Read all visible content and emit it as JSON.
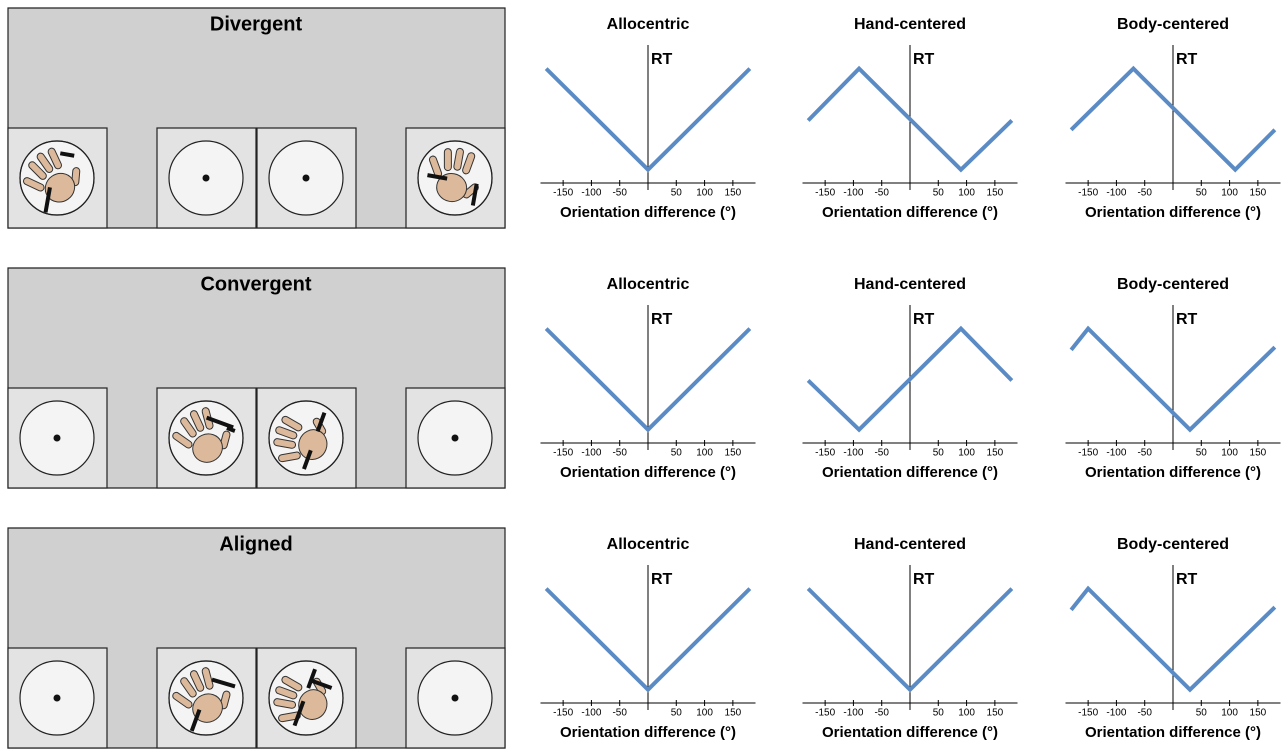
{
  "conditions": [
    "Divergent",
    "Convergent",
    "Aligned"
  ],
  "chart_data": [
    {
      "type": "line",
      "title": "Allocentric",
      "ylabel": "RT",
      "xlabel": "Orientation difference (°)",
      "x": [
        -180,
        0,
        180
      ],
      "values": [
        86,
        10,
        86
      ],
      "color": "#5b8bc5",
      "xlim": [
        -190,
        190
      ],
      "ylim": [
        0,
        100
      ],
      "xticks": [
        -150,
        -100,
        -50,
        50,
        100,
        150
      ]
    },
    {
      "type": "line",
      "title": "Hand-centered",
      "ylabel": "RT",
      "xlabel": "Orientation difference (°)",
      "x": [
        -180,
        -90,
        90,
        180
      ],
      "values": [
        47,
        86,
        10,
        47
      ],
      "color": "#5b8bc5",
      "xlim": [
        -190,
        190
      ],
      "ylim": [
        0,
        100
      ],
      "xticks": [
        -150,
        -100,
        -50,
        50,
        100,
        150
      ]
    },
    {
      "type": "line",
      "title": "Body-centered",
      "ylabel": "RT",
      "xlabel": "Orientation difference (°)",
      "x": [
        -180,
        -70,
        110,
        180
      ],
      "values": [
        40,
        86,
        10,
        40
      ],
      "color": "#5b8bc5",
      "xlim": [
        -190,
        190
      ],
      "ylim": [
        0,
        100
      ],
      "xticks": [
        -150,
        -100,
        -50,
        50,
        100,
        150
      ]
    },
    {
      "type": "line",
      "title": "Allocentric",
      "ylabel": "RT",
      "xlabel": "Orientation difference (°)",
      "x": [
        -180,
        0,
        180
      ],
      "values": [
        86,
        10,
        86
      ],
      "color": "#5b8bc5",
      "xlim": [
        -190,
        190
      ],
      "ylim": [
        0,
        100
      ],
      "xticks": [
        -150,
        -100,
        -50,
        50,
        100,
        150
      ]
    },
    {
      "type": "line",
      "title": "Hand-centered",
      "ylabel": "RT",
      "xlabel": "Orientation difference (°)",
      "x": [
        -180,
        -90,
        90,
        180
      ],
      "values": [
        47,
        10,
        86,
        47
      ],
      "color": "#5b8bc5",
      "xlim": [
        -190,
        190
      ],
      "ylim": [
        0,
        100
      ],
      "xticks": [
        -150,
        -100,
        -50,
        50,
        100,
        150
      ]
    },
    {
      "type": "line",
      "title": "Body-centered",
      "ylabel": "RT",
      "xlabel": "Orientation difference (°)",
      "x": [
        -180,
        -150,
        30,
        180
      ],
      "values": [
        70,
        86,
        10,
        72
      ],
      "color": "#5b8bc5",
      "xlim": [
        -190,
        190
      ],
      "ylim": [
        0,
        100
      ],
      "xticks": [
        -150,
        -100,
        -50,
        50,
        100,
        150
      ]
    },
    {
      "type": "line",
      "title": "Allocentric",
      "ylabel": "RT",
      "xlabel": "Orientation difference (°)",
      "x": [
        -180,
        0,
        180
      ],
      "values": [
        86,
        10,
        86
      ],
      "color": "#5b8bc5",
      "xlim": [
        -190,
        190
      ],
      "ylim": [
        0,
        100
      ],
      "xticks": [
        -150,
        -100,
        -50,
        50,
        100,
        150
      ]
    },
    {
      "type": "line",
      "title": "Hand-centered",
      "ylabel": "RT",
      "xlabel": "Orientation difference (°)",
      "x": [
        -180,
        0,
        180
      ],
      "values": [
        86,
        10,
        86
      ],
      "color": "#5b8bc5",
      "xlim": [
        -190,
        190
      ],
      "ylim": [
        0,
        100
      ],
      "xticks": [
        -150,
        -100,
        -50,
        50,
        100,
        150
      ]
    },
    {
      "type": "line",
      "title": "Body-centered",
      "ylabel": "RT",
      "xlabel": "Orientation difference (°)",
      "x": [
        -180,
        -150,
        30,
        180
      ],
      "values": [
        70,
        86,
        10,
        72
      ],
      "color": "#5b8bc5",
      "xlim": [
        -190,
        190
      ],
      "ylim": [
        0,
        100
      ],
      "xticks": [
        -150,
        -100,
        -50,
        50,
        100,
        150
      ]
    }
  ]
}
